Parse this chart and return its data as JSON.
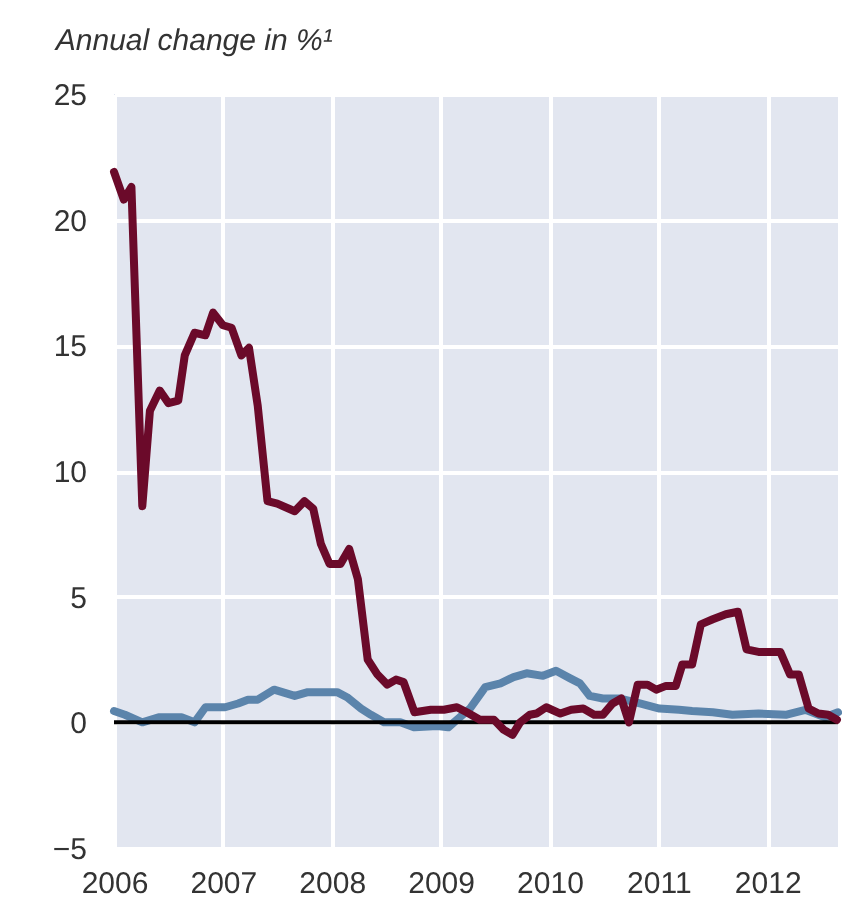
{
  "chart_data": {
    "type": "line",
    "title": "Annual change in %¹",
    "xlim": [
      2006,
      2012.65
    ],
    "xticks": [
      2006,
      2007,
      2008,
      2009,
      2010,
      2011,
      2012
    ],
    "ylim": [
      -5,
      25
    ],
    "yticks": [
      {
        "value": -5,
        "label": "−5"
      },
      0,
      5,
      10,
      15,
      20,
      25
    ],
    "grid": true,
    "line_style": "solid",
    "ref_lines": [
      {
        "axis": "y",
        "value": 0,
        "color": "#000000"
      }
    ],
    "series": [
      {
        "color": "#5b84ab",
        "x": [
          2006.0,
          2006.1,
          2006.26,
          2006.41,
          2006.62,
          2006.74,
          2006.84,
          2007.02,
          2007.14,
          2007.23,
          2007.32,
          2007.47,
          2007.66,
          2007.78,
          2008.05,
          2008.14,
          2008.27,
          2008.36,
          2008.48,
          2008.63,
          2008.76,
          2008.97,
          2009.07,
          2009.15,
          2009.27,
          2009.41,
          2009.55,
          2009.67,
          2009.79,
          2009.94,
          2010.06,
          2010.19,
          2010.28,
          2010.37,
          2010.49,
          2010.64,
          2010.83,
          2011.01,
          2011.19,
          2011.31,
          2011.5,
          2011.68,
          2011.92,
          2012.17,
          2012.35,
          2012.53,
          2012.65
        ],
        "values": [
          0.45,
          0.3,
          0.0,
          0.2,
          0.2,
          0.0,
          0.6,
          0.6,
          0.75,
          0.9,
          0.9,
          1.3,
          1.05,
          1.2,
          1.2,
          1.0,
          0.55,
          0.3,
          0.0,
          0.0,
          -0.2,
          -0.15,
          -0.2,
          0.1,
          0.55,
          1.4,
          1.55,
          1.8,
          1.95,
          1.85,
          2.05,
          1.75,
          1.55,
          1.05,
          0.95,
          0.95,
          0.75,
          0.55,
          0.5,
          0.45,
          0.4,
          0.3,
          0.35,
          0.3,
          0.5,
          0.2,
          0.4
        ]
      },
      {
        "color": "#6b0a2a",
        "x": [
          2006.0,
          2006.09,
          2006.16,
          2006.26,
          2006.33,
          2006.42,
          2006.5,
          2006.59,
          2006.65,
          2006.74,
          2006.84,
          2006.91,
          2007.0,
          2007.08,
          2007.17,
          2007.24,
          2007.32,
          2007.41,
          2007.5,
          2007.66,
          2007.75,
          2007.83,
          2007.9,
          2007.98,
          2008.08,
          2008.16,
          2008.24,
          2008.33,
          2008.42,
          2008.51,
          2008.59,
          2008.66,
          2008.76,
          2008.91,
          2009.03,
          2009.15,
          2009.24,
          2009.36,
          2009.49,
          2009.58,
          2009.66,
          2009.73,
          2009.82,
          2009.88,
          2009.97,
          2010.1,
          2010.2,
          2010.31,
          2010.41,
          2010.49,
          2010.58,
          2010.66,
          2010.73,
          2010.81,
          2010.9,
          2010.98,
          2011.07,
          2011.16,
          2011.22,
          2011.31,
          2011.39,
          2011.5,
          2011.62,
          2011.73,
          2011.81,
          2011.92,
          2012.12,
          2012.21,
          2012.29,
          2012.38,
          2012.47,
          2012.56,
          2012.64
        ],
        "values": [
          21.9,
          20.8,
          21.3,
          8.6,
          12.4,
          13.2,
          12.7,
          12.8,
          14.6,
          15.5,
          15.4,
          16.3,
          15.8,
          15.7,
          14.6,
          14.9,
          12.6,
          8.8,
          8.7,
          8.4,
          8.8,
          8.5,
          7.1,
          6.3,
          6.3,
          6.9,
          5.7,
          2.5,
          1.9,
          1.5,
          1.7,
          1.6,
          0.4,
          0.5,
          0.5,
          0.6,
          0.4,
          0.1,
          0.1,
          -0.3,
          -0.5,
          0.0,
          0.3,
          0.35,
          0.6,
          0.35,
          0.5,
          0.55,
          0.3,
          0.3,
          0.75,
          0.95,
          0.0,
          1.5,
          1.5,
          1.3,
          1.45,
          1.45,
          2.3,
          2.3,
          3.9,
          4.1,
          4.3,
          4.4,
          2.9,
          2.8,
          2.8,
          1.9,
          1.9,
          0.55,
          0.35,
          0.3,
          0.1
        ]
      }
    ]
  }
}
